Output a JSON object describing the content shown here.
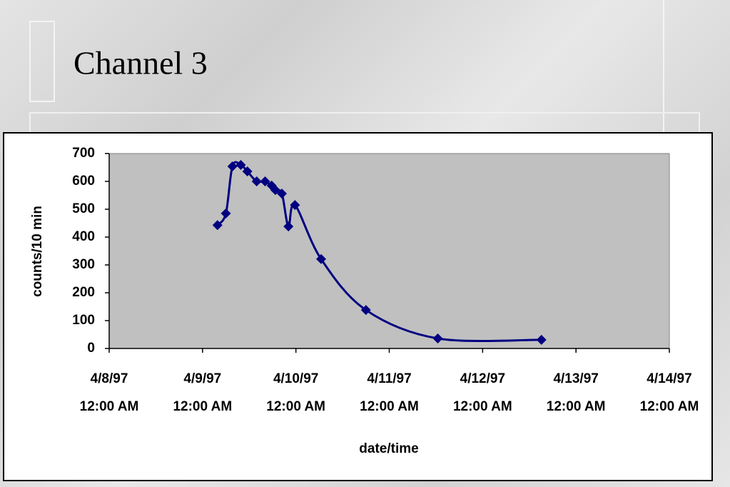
{
  "title": "Channel 3",
  "chart_data": {
    "type": "line",
    "x_label": "date/time",
    "y_label": "counts/10 min",
    "xlim": [
      0,
      6
    ],
    "ylim": [
      0,
      700
    ],
    "xticks": [
      {
        "value": 0,
        "label": [
          "4/8/97",
          "12:00 AM"
        ]
      },
      {
        "value": 1,
        "label": [
          "4/9/97",
          "12:00 AM"
        ]
      },
      {
        "value": 2,
        "label": [
          "4/10/97",
          "12:00 AM"
        ]
      },
      {
        "value": 3,
        "label": [
          "4/11/97",
          "12:00 AM"
        ]
      },
      {
        "value": 4,
        "label": [
          "4/12/97",
          "12:00 AM"
        ]
      },
      {
        "value": 5,
        "label": [
          "4/13/97",
          "12:00 AM"
        ]
      },
      {
        "value": 6,
        "label": [
          "4/14/97",
          "12:00 AM"
        ]
      }
    ],
    "yticks": [
      0,
      100,
      200,
      300,
      400,
      500,
      600,
      700
    ],
    "plot_background": "#c0c0c0",
    "series": [
      {
        "color": "#000080",
        "x": [
          1.16,
          1.25,
          1.32,
          1.41,
          1.48,
          1.58,
          1.67,
          1.74,
          1.78,
          1.85,
          1.92,
          1.99,
          2.27,
          2.75,
          3.52,
          4.63
        ],
        "values": [
          443,
          485,
          654,
          659,
          636,
          600,
          600,
          585,
          569,
          556,
          438,
          515,
          321,
          138,
          36,
          31
        ]
      }
    ]
  }
}
